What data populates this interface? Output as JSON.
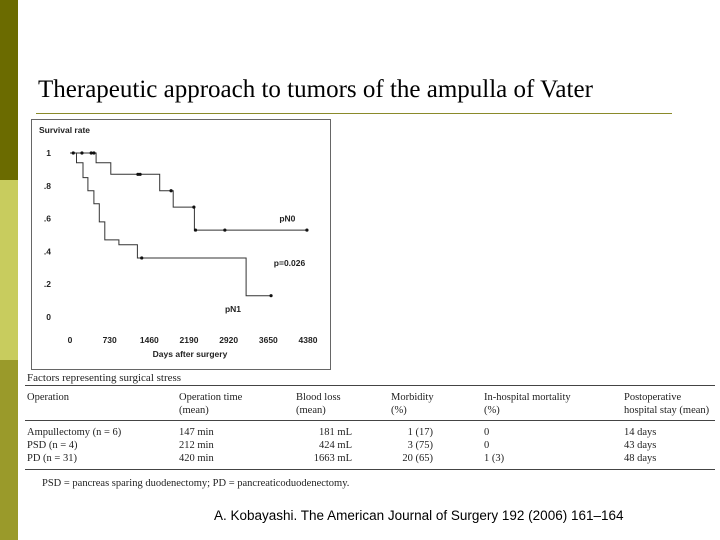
{
  "slide": {
    "title": "Therapeutic approach to tumors of the ampulla of Vater",
    "citation": "A. Kobayashi. The American Journal of Surgery 192 (2006) 161–164",
    "colors": {
      "bar_dark": "#6b6b00",
      "bar_light": "#c8cc5e",
      "bar_mid": "#9a9a2a"
    }
  },
  "chart_data": {
    "type": "line",
    "title": "",
    "ylabel": "Survival rate",
    "xlabel": "Days after surgery",
    "x_ticks": [
      0,
      730,
      1460,
      2190,
      2920,
      3650,
      4380
    ],
    "y_ticks": [
      {
        "value": 0,
        "label": "0"
      },
      {
        "value": 0.2,
        "label": ".2"
      },
      {
        "value": 0.4,
        "label": ".4"
      },
      {
        "value": 0.6,
        "label": ".6"
      },
      {
        "value": 0.8,
        "label": ".8"
      },
      {
        "value": 1,
        "label": "1"
      }
    ],
    "xlim": [
      0,
      4380
    ],
    "ylim": [
      0,
      1
    ],
    "grid": false,
    "step": true,
    "series": [
      {
        "name": "pN0",
        "steps": [
          [
            0,
            1.0
          ],
          [
            480,
            0.94
          ],
          [
            750,
            0.87
          ],
          [
            1650,
            0.77
          ],
          [
            1900,
            0.67
          ],
          [
            2290,
            0.53
          ],
          [
            4360,
            0.53
          ]
        ],
        "censored": [
          [
            220,
            1.0
          ],
          [
            390,
            1.0
          ],
          [
            440,
            1.0
          ],
          [
            1250,
            0.87
          ],
          [
            1290,
            0.87
          ],
          [
            1860,
            0.77
          ],
          [
            2280,
            0.67
          ],
          [
            2310,
            0.53
          ],
          [
            2850,
            0.53
          ],
          [
            4360,
            0.53
          ]
        ]
      },
      {
        "name": "pN1",
        "steps": [
          [
            0,
            1.0
          ],
          [
            120,
            0.94
          ],
          [
            240,
            0.85
          ],
          [
            330,
            0.77
          ],
          [
            440,
            0.69
          ],
          [
            540,
            0.58
          ],
          [
            640,
            0.47
          ],
          [
            900,
            0.44
          ],
          [
            1240,
            0.36
          ],
          [
            3240,
            0.13
          ],
          [
            3700,
            0.13
          ]
        ],
        "censored": [
          [
            60,
            1.0
          ],
          [
            1320,
            0.36
          ],
          [
            3700,
            0.13
          ]
        ]
      }
    ],
    "annotations": [
      {
        "text": "pN0",
        "x": 4000,
        "y": 0.6
      },
      {
        "text": "p=0.026",
        "x": 4040,
        "y": 0.33
      },
      {
        "text": "pN1",
        "x": 3000,
        "y": 0.05
      }
    ]
  },
  "table": {
    "title": "Factors representing surgical stress",
    "headers": [
      {
        "line1": "Operation",
        "line2": ""
      },
      {
        "line1": "Operation time",
        "line2": "(mean)"
      },
      {
        "line1": "Blood loss",
        "line2": "(mean)"
      },
      {
        "line1": "Morbidity",
        "line2": "(%)"
      },
      {
        "line1": "In-hospital mortality",
        "line2": "(%)"
      },
      {
        "line1": "Postoperative",
        "line2": "hospital stay (mean)"
      }
    ],
    "rows": [
      [
        "Ampullectomy (n = 6)",
        "147 min",
        "181 mL",
        "1 (17)",
        "0",
        "14 days"
      ],
      [
        "PSD (n = 4)",
        "212 min",
        "424 mL",
        "3 (75)",
        "0",
        "43 days"
      ],
      [
        "PD (n = 31)",
        "420 min",
        "1663 mL",
        "20 (65)",
        "1 (3)",
        "48 days"
      ]
    ],
    "footnote": "PSD = pancreas sparing duodenectomy; PD = pancreaticoduodenectomy."
  }
}
